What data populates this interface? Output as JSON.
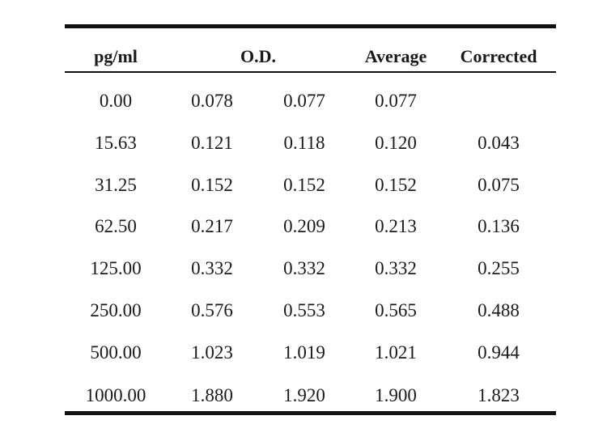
{
  "table": {
    "headers": {
      "concentration": "pg/ml",
      "od": "O.D.",
      "average": "Average",
      "corrected": "Corrected"
    },
    "rows": [
      {
        "concentration": "0.00",
        "od1": "0.078",
        "od2": "0.077",
        "average": "0.077",
        "corrected": ""
      },
      {
        "concentration": "15.63",
        "od1": "0.121",
        "od2": "0.118",
        "average": "0.120",
        "corrected": "0.043"
      },
      {
        "concentration": "31.25",
        "od1": "0.152",
        "od2": "0.152",
        "average": "0.152",
        "corrected": "0.075"
      },
      {
        "concentration": "62.50",
        "od1": "0.217",
        "od2": "0.209",
        "average": "0.213",
        "corrected": "0.136"
      },
      {
        "concentration": "125.00",
        "od1": "0.332",
        "od2": "0.332",
        "average": "0.332",
        "corrected": "0.255"
      },
      {
        "concentration": "250.00",
        "od1": "0.576",
        "od2": "0.553",
        "average": "0.565",
        "corrected": "0.488"
      },
      {
        "concentration": "500.00",
        "od1": "1.023",
        "od2": "1.019",
        "average": "1.021",
        "corrected": "0.944"
      },
      {
        "concentration": "1000.00",
        "od1": "1.880",
        "od2": "1.920",
        "average": "1.900",
        "corrected": "1.823"
      }
    ]
  }
}
